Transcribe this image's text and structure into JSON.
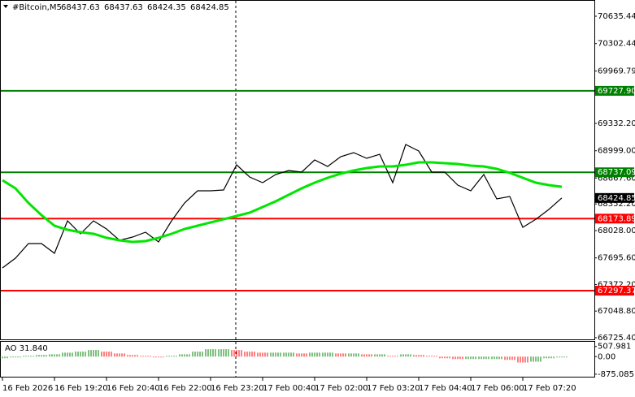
{
  "chart_data": {
    "type": "line",
    "title": "#Bitcoin,M5",
    "ohlc": [
      68437.63,
      68437.63,
      68424.35,
      68424.85
    ],
    "x": [
      0,
      1,
      2,
      3,
      4,
      5,
      6,
      7,
      8,
      9,
      10,
      11,
      12,
      13,
      14,
      15,
      16,
      17,
      18,
      19,
      20,
      21,
      22,
      23,
      24,
      25,
      26,
      27,
      28,
      29,
      30,
      31,
      32,
      33,
      34,
      35,
      36,
      37,
      38,
      39,
      40,
      41,
      42,
      43
    ],
    "xlim": [
      0,
      45.5
    ],
    "xticks": [
      {
        "value": 0,
        "label": "16 Feb 2026"
      },
      {
        "value": 4,
        "label": "16 Feb 19:20"
      },
      {
        "value": 8,
        "label": "16 Feb 20:40"
      },
      {
        "value": 12,
        "label": "16 Feb 22:00"
      },
      {
        "value": 16,
        "label": "16 Feb 23:20"
      },
      {
        "value": 20,
        "label": "17 Feb 00:40"
      },
      {
        "value": 24,
        "label": "17 Feb 02:00"
      },
      {
        "value": 28,
        "label": "17 Feb 03:20"
      },
      {
        "value": 32,
        "label": "17 Feb 04:40"
      },
      {
        "value": 36,
        "label": "17 Feb 06:00"
      },
      {
        "value": 40,
        "label": "17 Feb 07:20"
      }
    ],
    "ylim": [
      66715,
      70813
    ],
    "yticks": [
      70635.44,
      70302.44,
      69969.79,
      {
        "value": 69332.2,
        "label": "69332.20"
      },
      {
        "value": 68999,
        "label": "68999.00"
      },
      {
        "value": 68667.6,
        "label": "68667.60"
      },
      {
        "value": 68352.2,
        "label": "68352.20"
      },
      {
        "value": 68028,
        "label": "68028.00"
      },
      {
        "value": 67695.6,
        "label": "67695.60"
      },
      {
        "value": 67372.2,
        "label": "67372.20"
      },
      {
        "value": 67048.8,
        "label": "67048.80"
      },
      {
        "value": 66725.4,
        "label": "66725.40"
      }
    ],
    "series": [
      {
        "color": "#000000",
        "values": [
          67574,
          67693,
          67870,
          67870,
          67752,
          68147,
          67989,
          68147,
          68048,
          67910,
          67949,
          68009,
          67890,
          68147,
          68364,
          68512,
          68512,
          68522,
          68828,
          68680,
          68611,
          68710,
          68759,
          68739,
          68887,
          68808,
          68927,
          68976,
          68907,
          68956,
          68611,
          69075,
          68996,
          68739,
          68739,
          68581,
          68512,
          68710,
          68413,
          68443,
          68068,
          68166,
          68285,
          68425
        ]
      },
      {
        "color": "#00e600",
        "values": [
          68641,
          68542,
          68364,
          68216,
          68088,
          68038,
          68009,
          67989,
          67940,
          67910,
          67890,
          67900,
          67940,
          67989,
          68048,
          68088,
          68127,
          68166,
          68206,
          68246,
          68315,
          68384,
          68463,
          68542,
          68611,
          68670,
          68720,
          68759,
          68789,
          68808,
          68808,
          68828,
          68858,
          68858,
          68848,
          68838,
          68818,
          68808,
          68779,
          68730,
          68670,
          68611,
          68581,
          68561
        ]
      }
    ],
    "levels": [
      {
        "value": 69727.9,
        "label": "69727.90",
        "color": "#008000"
      },
      {
        "value": 68737.09,
        "label": "68737.09",
        "color": "#008000"
      },
      {
        "value": 68173.89,
        "label": "68173.89",
        "color": "#ff0000"
      },
      {
        "value": 67297.37,
        "label": "67297.37",
        "color": "#ff0000"
      }
    ],
    "current_price": {
      "value": 68424.85,
      "label": "68424.85"
    },
    "indicator": {
      "title": "AO 31.840",
      "ylim": [
        -960,
        740
      ],
      "yticks": [
        507.981,
        {
          "value": 0,
          "label": "0.00"
        },
        -875.085
      ],
      "up_color": "#008000",
      "down_color": "#ff0000",
      "values": [
        -80,
        -40,
        40,
        80,
        120,
        200,
        250,
        330,
        250,
        160,
        80,
        40,
        -40,
        40,
        120,
        250,
        370,
        370,
        330,
        250,
        200,
        200,
        200,
        160,
        200,
        200,
        160,
        160,
        120,
        120,
        40,
        120,
        80,
        40,
        -80,
        -120,
        -120,
        -120,
        -120,
        -160,
        -290,
        -250,
        -80,
        -40
      ]
    }
  }
}
